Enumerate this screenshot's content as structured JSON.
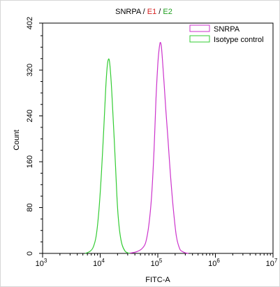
{
  "chart_data": {
    "type": "line",
    "title": {
      "parts": [
        {
          "text": "SNRPA",
          "color": "#000000"
        },
        {
          "text": " / ",
          "color": "#000000"
        },
        {
          "text": "E1",
          "color": "#d62020"
        },
        {
          "text": " / ",
          "color": "#000000"
        },
        {
          "text": "E2",
          "color": "#20a020"
        }
      ]
    },
    "xlabel": "FITC-A",
    "ylabel": "Count",
    "x_scale": "log",
    "xlim": [
      1000,
      10000000
    ],
    "ylim": [
      0,
      402
    ],
    "x_ticks": [
      {
        "value": 1000,
        "base": "10",
        "exp": "3"
      },
      {
        "value": 10000,
        "base": "10",
        "exp": "4"
      },
      {
        "value": 100000,
        "base": "10",
        "exp": "5"
      },
      {
        "value": 1000000,
        "base": "10",
        "exp": "6"
      },
      {
        "value": 10000000,
        "base": "10",
        "exp": "7"
      }
    ],
    "y_ticks": [
      "0",
      "80",
      "160",
      "240",
      "320",
      "402"
    ],
    "y_tick_values": [
      0,
      80,
      160,
      240,
      320,
      402
    ],
    "legend": {
      "placement": "top-right"
    },
    "series": [
      {
        "name": "SNRPA",
        "color": "#cc33cc",
        "x": [
          30000,
          40000,
          48000,
          55000,
          62000,
          70000,
          78000,
          86000,
          93000,
          100000,
          105000,
          110000,
          115000,
          120000,
          128000,
          138000,
          150000,
          165000,
          185000,
          210000,
          240000,
          270000,
          300000,
          340000
        ],
        "y": [
          0,
          2,
          5,
          10,
          20,
          50,
          100,
          180,
          270,
          330,
          355,
          368,
          362,
          340,
          300,
          250,
          200,
          140,
          80,
          30,
          8,
          3,
          1,
          0
        ]
      },
      {
        "name": "Isotype control",
        "color": "#33cc33",
        "x": [
          5500,
          6500,
          7500,
          8500,
          9500,
          10500,
          11500,
          12500,
          13200,
          13800,
          14500,
          15500,
          16500,
          17500,
          18500,
          19500,
          20500,
          22000,
          24000,
          27000,
          30000,
          33000
        ],
        "y": [
          0,
          3,
          10,
          30,
          75,
          140,
          215,
          290,
          325,
          338,
          335,
          300,
          250,
          200,
          150,
          100,
          65,
          35,
          15,
          4,
          1,
          0
        ]
      }
    ]
  }
}
